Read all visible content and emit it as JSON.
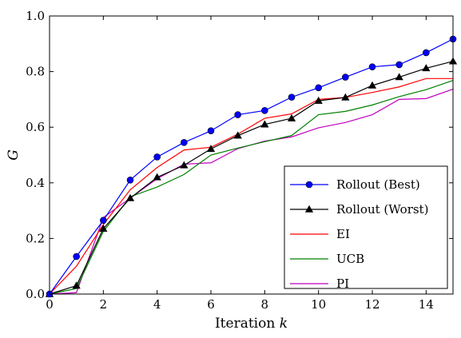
{
  "chart_data": {
    "type": "line",
    "title": "",
    "xlabel": "Iteration k",
    "xlabel_text": "Iteration ",
    "xlabel_var": "k",
    "ylabel": "G",
    "xlim": [
      0,
      15
    ],
    "ylim": [
      0,
      1.0
    ],
    "xticks": [
      0,
      2,
      4,
      6,
      8,
      10,
      12,
      14
    ],
    "xtick_labels": [
      "0",
      "2",
      "4",
      "6",
      "8",
      "10",
      "12",
      "14"
    ],
    "yticks": [
      0,
      0.2,
      0.4,
      0.6,
      0.8,
      1.0
    ],
    "ytick_labels": [
      "0.0",
      "0.2",
      "0.4",
      "0.6",
      "0.8",
      "1.0"
    ],
    "grid": false,
    "legend_position": "lower-right",
    "x": [
      0,
      1,
      2,
      3,
      4,
      5,
      6,
      7,
      8,
      9,
      10,
      11,
      12,
      13,
      14,
      15
    ],
    "series": [
      {
        "name": "Rollout (Best)",
        "color": "#0000ff",
        "marker": "circle",
        "values": [
          0.0,
          0.135,
          0.265,
          0.41,
          0.493,
          0.545,
          0.587,
          0.645,
          0.66,
          0.708,
          0.742,
          0.78,
          0.817,
          0.825,
          0.868,
          0.917
        ]
      },
      {
        "name": "Rollout (Worst)",
        "color": "#000000",
        "marker": "triangle",
        "values": [
          0.0,
          0.03,
          0.235,
          0.345,
          0.42,
          0.463,
          0.522,
          0.57,
          0.61,
          0.632,
          0.695,
          0.707,
          0.75,
          0.78,
          0.812,
          0.837
        ]
      },
      {
        "name": "EI",
        "color": "#ff0000",
        "marker": "none",
        "values": [
          0.0,
          0.1,
          0.25,
          0.375,
          0.455,
          0.518,
          0.528,
          0.575,
          0.632,
          0.648,
          0.7,
          0.707,
          0.725,
          0.745,
          0.775,
          0.775
        ]
      },
      {
        "name": "UCB",
        "color": "#008000",
        "marker": "none",
        "values": [
          0.0,
          0.02,
          0.225,
          0.35,
          0.385,
          0.43,
          0.5,
          0.525,
          0.548,
          0.57,
          0.645,
          0.657,
          0.68,
          0.71,
          0.735,
          0.768
        ]
      },
      {
        "name": "PI",
        "color": "#bf00bf",
        "marker": "none",
        "values": [
          0.0,
          0.005,
          0.275,
          0.345,
          0.415,
          0.467,
          0.472,
          0.523,
          0.55,
          0.565,
          0.598,
          0.617,
          0.645,
          0.7,
          0.703,
          0.737
        ]
      }
    ]
  }
}
